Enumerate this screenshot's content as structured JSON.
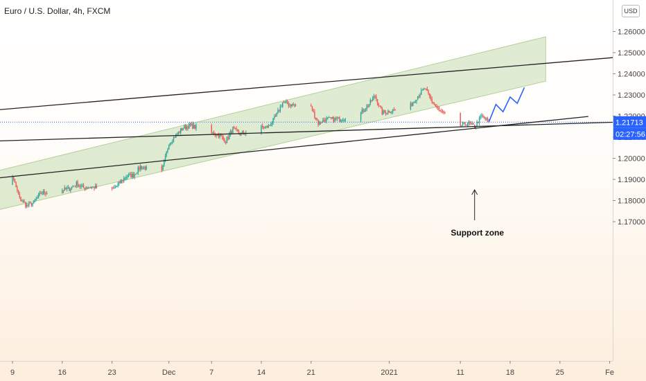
{
  "header": {
    "symbol_title": "Euro / U.S. Dollar, 4h, FXCM",
    "currency_button": "USD"
  },
  "price_scale": {
    "last_price_label": "1.21713",
    "countdown_label": "02:27:56"
  },
  "annotation": {
    "text": "Support zone"
  },
  "colors": {
    "up": "#26a69a",
    "down": "#ef5350",
    "channel_fill": "#c5dcb0",
    "trendline": "#222222",
    "projection": "#2962ff",
    "price_label_bg": "#2962ff"
  },
  "chart_data": {
    "type": "candlestick",
    "title": "Euro / U.S. Dollar, 4h, FXCM",
    "y_axis": {
      "range": [
        1.1605,
        1.2715
      ],
      "ticks": [
        "1.26000",
        "1.25000",
        "1.24000",
        "1.23000",
        "1.22000",
        "1.21000",
        "1.20000",
        "1.19000",
        "1.18000",
        "1.17000"
      ]
    },
    "x_axis": {
      "ticks": [
        {
          "label": "9",
          "date": "2020-11-09"
        },
        {
          "label": "16",
          "date": "2020-11-16"
        },
        {
          "label": "23",
          "date": "2020-11-23"
        },
        {
          "label": "Dec",
          "date": "2020-12-01"
        },
        {
          "label": "7",
          "date": "2020-12-07"
        },
        {
          "label": "14",
          "date": "2020-12-14"
        },
        {
          "label": "21",
          "date": "2020-12-21"
        },
        {
          "label": "2021",
          "date": "2021-01-01"
        },
        {
          "label": "11",
          "date": "2021-01-11"
        },
        {
          "label": "18",
          "date": "2021-01-18"
        },
        {
          "label": "25",
          "date": "2021-01-25"
        },
        {
          "label": "Fe",
          "date": "2021-02-01"
        }
      ]
    },
    "last_price": 1.21713,
    "price_path": [
      [
        "2020-11-06",
        1.1858
      ],
      [
        "2020-11-09",
        1.1915
      ],
      [
        "2020-11-10",
        1.181
      ],
      [
        "2020-11-11",
        1.1775
      ],
      [
        "2020-11-12",
        1.179
      ],
      [
        "2020-11-13",
        1.1835
      ],
      [
        "2020-11-16",
        1.185
      ],
      [
        "2020-11-17",
        1.1855
      ],
      [
        "2020-11-18",
        1.188
      ],
      [
        "2020-11-19",
        1.186
      ],
      [
        "2020-11-20",
        1.1865
      ],
      [
        "2020-11-23",
        1.185
      ],
      [
        "2020-11-24",
        1.188
      ],
      [
        "2020-11-25",
        1.1915
      ],
      [
        "2020-11-26",
        1.192
      ],
      [
        "2020-11-27",
        1.196
      ],
      [
        "2020-11-30",
        1.1935
      ],
      [
        "2020-12-01",
        1.207
      ],
      [
        "2020-12-02",
        1.211
      ],
      [
        "2020-12-03",
        1.2145
      ],
      [
        "2020-12-04",
        1.2155
      ],
      [
        "2020-12-07",
        1.212
      ],
      [
        "2020-12-08",
        1.211
      ],
      [
        "2020-12-09",
        1.208
      ],
      [
        "2020-12-10",
        1.214
      ],
      [
        "2020-12-11",
        1.2115
      ],
      [
        "2020-12-14",
        1.2145
      ],
      [
        "2020-12-15",
        1.215
      ],
      [
        "2020-12-16",
        1.2195
      ],
      [
        "2020-12-17",
        1.2265
      ],
      [
        "2020-12-18",
        1.2255
      ],
      [
        "2020-12-21",
        1.224
      ],
      [
        "2020-12-22",
        1.2165
      ],
      [
        "2020-12-23",
        1.2185
      ],
      [
        "2020-12-24",
        1.2185
      ],
      [
        "2020-12-25",
        1.2185
      ],
      [
        "2020-12-28",
        1.2215
      ],
      [
        "2020-12-29",
        1.225
      ],
      [
        "2020-12-30",
        1.2295
      ],
      [
        "2020-12-31",
        1.2215
      ],
      [
        "2021-01-04",
        1.225
      ],
      [
        "2021-01-05",
        1.2295
      ],
      [
        "2021-01-06",
        1.233
      ],
      [
        "2021-01-07",
        1.227
      ],
      [
        "2021-01-08",
        1.2225
      ],
      [
        "2021-01-11",
        1.2155
      ],
      [
        "2021-01-12",
        1.2165
      ],
      [
        "2021-01-13",
        1.215
      ],
      [
        "2021-01-14",
        1.22
      ],
      [
        "2021-01-15",
        1.2171
      ]
    ],
    "trendlines": [
      {
        "name": "upper line",
        "points": [
          [
            "2020-11-05",
            1.2224
          ],
          [
            "2021-02-02",
            1.2478
          ]
        ]
      },
      {
        "name": "middle line",
        "points": [
          [
            "2020-11-05",
            1.208
          ],
          [
            "2021-02-02",
            1.2171
          ]
        ]
      },
      {
        "name": "lower line",
        "points": [
          [
            "2020-11-05",
            1.19
          ],
          [
            "2021-01-29",
            1.2198
          ]
        ]
      }
    ],
    "channel": {
      "lower": [
        [
          "2020-11-05",
          1.174
        ],
        [
          "2021-01-23",
          1.2365
        ]
      ],
      "upper": [
        [
          "2020-11-05",
          1.1925
        ],
        [
          "2021-01-23",
          1.2575
        ]
      ]
    },
    "projection": [
      [
        "2021-01-15",
        1.2171
      ],
      [
        "2021-01-16",
        1.2255
      ],
      [
        "2021-01-17",
        1.222
      ],
      [
        "2021-01-18",
        1.229
      ],
      [
        "2021-01-19",
        1.226
      ],
      [
        "2021-01-20",
        1.2335
      ]
    ],
    "support_arrow_date": "2021-01-13"
  }
}
